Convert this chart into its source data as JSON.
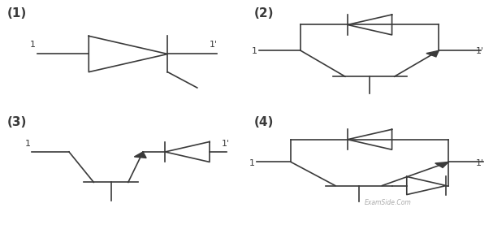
{
  "bg_color": "#ffffff",
  "line_color": "#3a3a3a",
  "text_color": "#3a3a3a",
  "label_fontsize": 8,
  "number_fontsize": 11
}
